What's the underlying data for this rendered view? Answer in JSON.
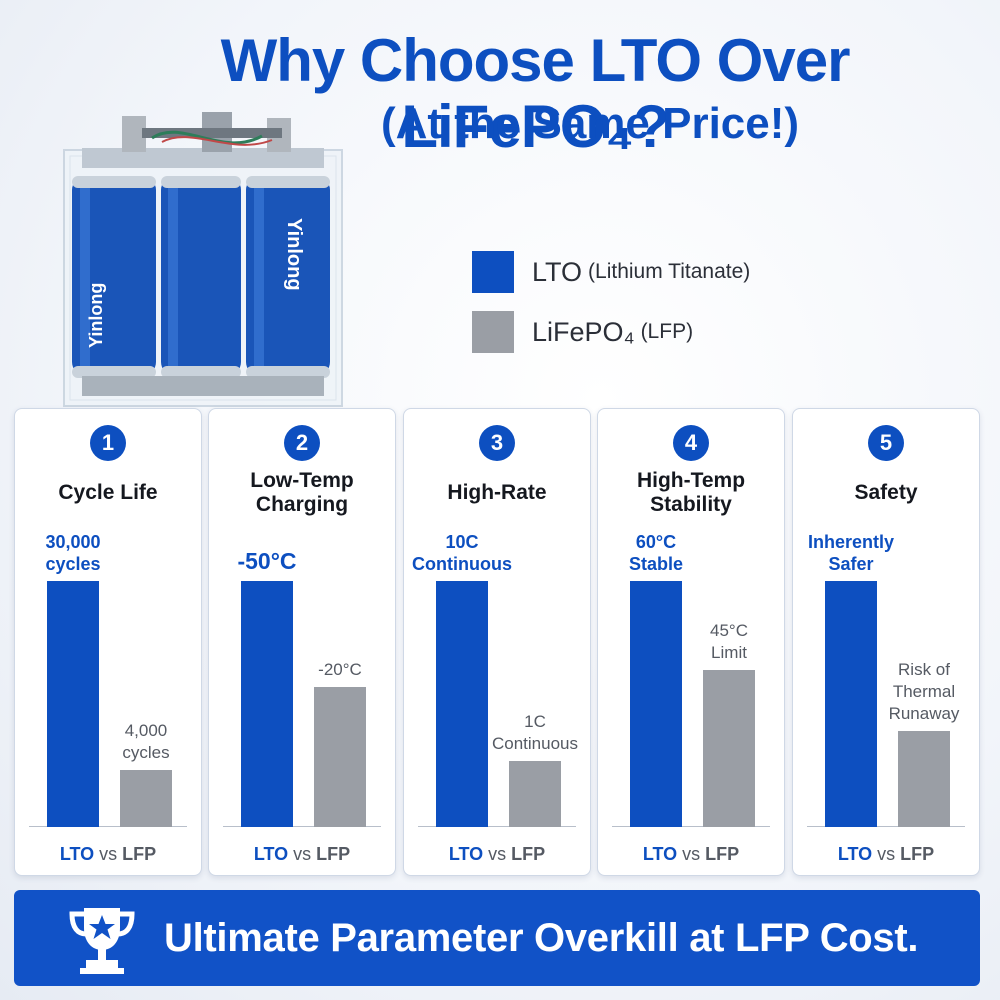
{
  "header": {
    "title": "Why Choose LTO Over LiFePO₄?",
    "subtitle": "(At the Same Price!)"
  },
  "legend": {
    "lto_label": "LTO",
    "lto_sub": "(Lithium Titanate)",
    "lfp_label": "LiFePO₄",
    "lfp_sub": "(LFP)"
  },
  "colors": {
    "brand_blue": "#0d4fc0",
    "lfp_gray": "#9a9ea5",
    "banner_blue": "#1152c7"
  },
  "footer": {
    "lto": "LTO",
    "vs": "vs",
    "lfp": "LFP"
  },
  "banner": {
    "text": "Ultimate Parameter Overkill at LFP Cost.",
    "icon": "trophy-star-icon"
  },
  "illustration": {
    "icon": "battery-pack-image",
    "brand_text": "Yinlong"
  },
  "chart_data": {
    "type": "bar",
    "series": [
      {
        "name": "LTO"
      },
      {
        "name": "LiFePO₄"
      }
    ],
    "categories": [
      {
        "number": "1",
        "title": "Cycle Life",
        "lto_label": [
          "30,000",
          "cycles"
        ],
        "lfp_label": [
          "4,000",
          "cycles"
        ],
        "lto_value": 1.0,
        "lfp_value": 0.23
      },
      {
        "number": "2",
        "title": "Low-Temp Charging",
        "lto_label": [
          "-50°C"
        ],
        "lfp_label": [
          "-20°C"
        ],
        "lto_value": 1.0,
        "lfp_value": 0.57
      },
      {
        "number": "3",
        "title": "High-Rate",
        "lto_label": [
          "10C",
          "Continuous"
        ],
        "lfp_label": [
          "1C",
          "Continuous"
        ],
        "lto_value": 1.0,
        "lfp_value": 0.27
      },
      {
        "number": "4",
        "title": "High-Temp Stability",
        "lto_label": [
          "60°C",
          "Stable"
        ],
        "lfp_label": [
          "45°C",
          "Limit"
        ],
        "lto_value": 1.0,
        "lfp_value": 0.64
      },
      {
        "number": "5",
        "title": "Safety",
        "lto_label": [
          "Inherently",
          "Safer"
        ],
        "lfp_label": [
          "Risk of",
          "Thermal",
          "Runaway"
        ],
        "lto_value": 1.0,
        "lfp_value": 0.39
      }
    ]
  }
}
